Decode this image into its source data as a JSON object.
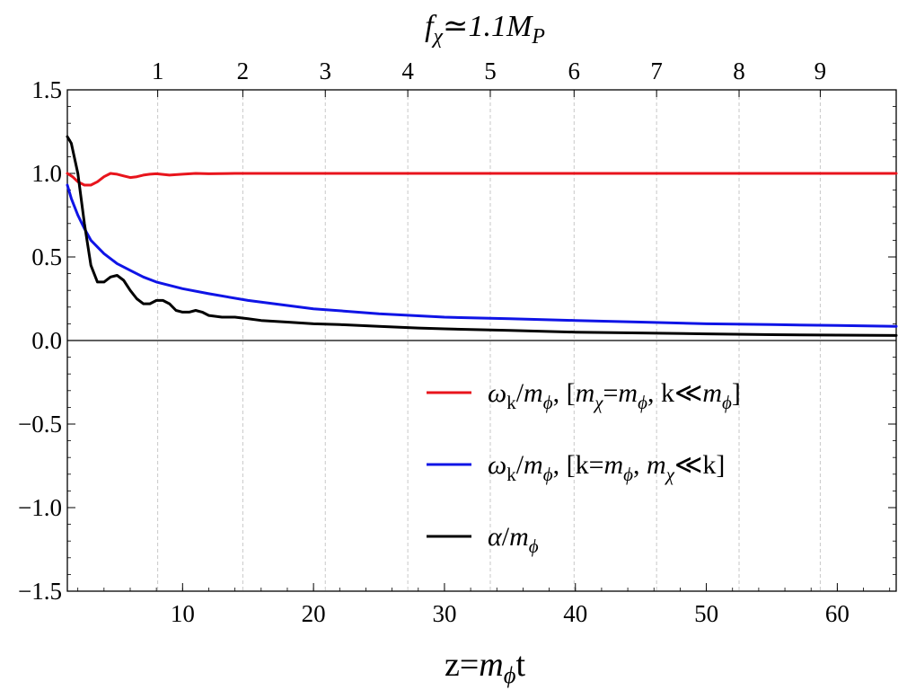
{
  "chart_data": {
    "type": "line",
    "title": "f_χ≃1.1M_P",
    "xlabel": "z=m_ϕt",
    "ylabel": "",
    "xlim": [
      1.2,
      64.5
    ],
    "ylim": [
      -1.5,
      1.5
    ],
    "x_ticks": [
      10,
      20,
      30,
      40,
      50,
      60
    ],
    "x_tick_labels": [
      "10",
      "20",
      "30",
      "40",
      "50",
      "60"
    ],
    "y_ticks": [
      -1.5,
      -1.0,
      -0.5,
      0.0,
      0.5,
      1.0,
      1.5
    ],
    "y_tick_labels": [
      "−1.5",
      "−1.0",
      "−0.5",
      "0.0",
      "0.5",
      "1.0",
      "1.5"
    ],
    "top_axis": {
      "ticks_z": [
        8.1,
        14.6,
        20.9,
        27.2,
        33.5,
        39.9,
        46.2,
        52.5,
        58.7
      ],
      "labels": [
        "1",
        "2",
        "3",
        "4",
        "5",
        "6",
        "7",
        "8",
        "9"
      ],
      "gridlines": "dashed"
    },
    "series": [
      {
        "name": "ω_k/m_ϕ, [m_χ=m_ϕ, k≪m_ϕ]",
        "color": "#e8141c",
        "x": [
          1.2,
          1.6,
          2.0,
          2.5,
          3.0,
          3.5,
          4.0,
          4.5,
          5.0,
          5.5,
          6.0,
          6.5,
          7.0,
          7.5,
          8.0,
          9.0,
          10.0,
          11.0,
          12.0,
          14.0,
          16.0,
          20.0,
          30.0,
          40.0,
          50.0,
          64.5
        ],
        "values": [
          1.0,
          0.98,
          0.95,
          0.93,
          0.93,
          0.95,
          0.98,
          1.0,
          0.995,
          0.985,
          0.975,
          0.98,
          0.99,
          0.995,
          0.998,
          0.99,
          0.995,
          1.0,
          0.998,
          1.0,
          1.0,
          1.0,
          1.0,
          1.0,
          1.0,
          1.0
        ]
      },
      {
        "name": "ω_k/m_ϕ, [k=m_ϕ, m_χ≪k]",
        "color": "#0f14e6",
        "x": [
          1.2,
          1.5,
          2.0,
          2.5,
          3.0,
          4.0,
          5.0,
          6.0,
          7.0,
          8.0,
          10.0,
          12.0,
          15.0,
          20.0,
          25.0,
          30.0,
          35.0,
          40.0,
          45.0,
          50.0,
          55.0,
          60.0,
          64.5
        ],
        "values": [
          0.93,
          0.85,
          0.75,
          0.67,
          0.6,
          0.52,
          0.46,
          0.42,
          0.38,
          0.35,
          0.31,
          0.28,
          0.24,
          0.19,
          0.16,
          0.14,
          0.13,
          0.12,
          0.11,
          0.1,
          0.095,
          0.09,
          0.085
        ]
      },
      {
        "name": "α/m_ϕ",
        "color": "#000000",
        "x": [
          1.2,
          1.5,
          2.0,
          2.5,
          3.0,
          3.5,
          4.0,
          4.5,
          5.0,
          5.5,
          6.0,
          6.5,
          7.0,
          7.5,
          8.0,
          8.5,
          9.0,
          9.5,
          10.0,
          10.5,
          11.0,
          11.5,
          12.0,
          13.0,
          14.0,
          15.0,
          16.0,
          17.0,
          18.0,
          20.0,
          22.0,
          25.0,
          28.0,
          30.0,
          35.0,
          40.0,
          45.0,
          50.0,
          55.0,
          60.0,
          64.5
        ],
        "values": [
          1.22,
          1.18,
          1.0,
          0.7,
          0.45,
          0.35,
          0.35,
          0.38,
          0.39,
          0.36,
          0.3,
          0.25,
          0.22,
          0.22,
          0.24,
          0.24,
          0.22,
          0.18,
          0.17,
          0.17,
          0.18,
          0.17,
          0.15,
          0.14,
          0.14,
          0.13,
          0.12,
          0.115,
          0.11,
          0.1,
          0.095,
          0.085,
          0.075,
          0.07,
          0.06,
          0.05,
          0.045,
          0.04,
          0.035,
          0.032,
          0.03
        ]
      }
    ],
    "legend": {
      "placement": "right-middle",
      "entries": [
        "ω_k/m_ϕ, [m_χ=m_ϕ, k≪m_ϕ]",
        "ω_k/m_ϕ, [k=m_ϕ, m_χ≪k]",
        "α/m_ϕ"
      ]
    }
  }
}
